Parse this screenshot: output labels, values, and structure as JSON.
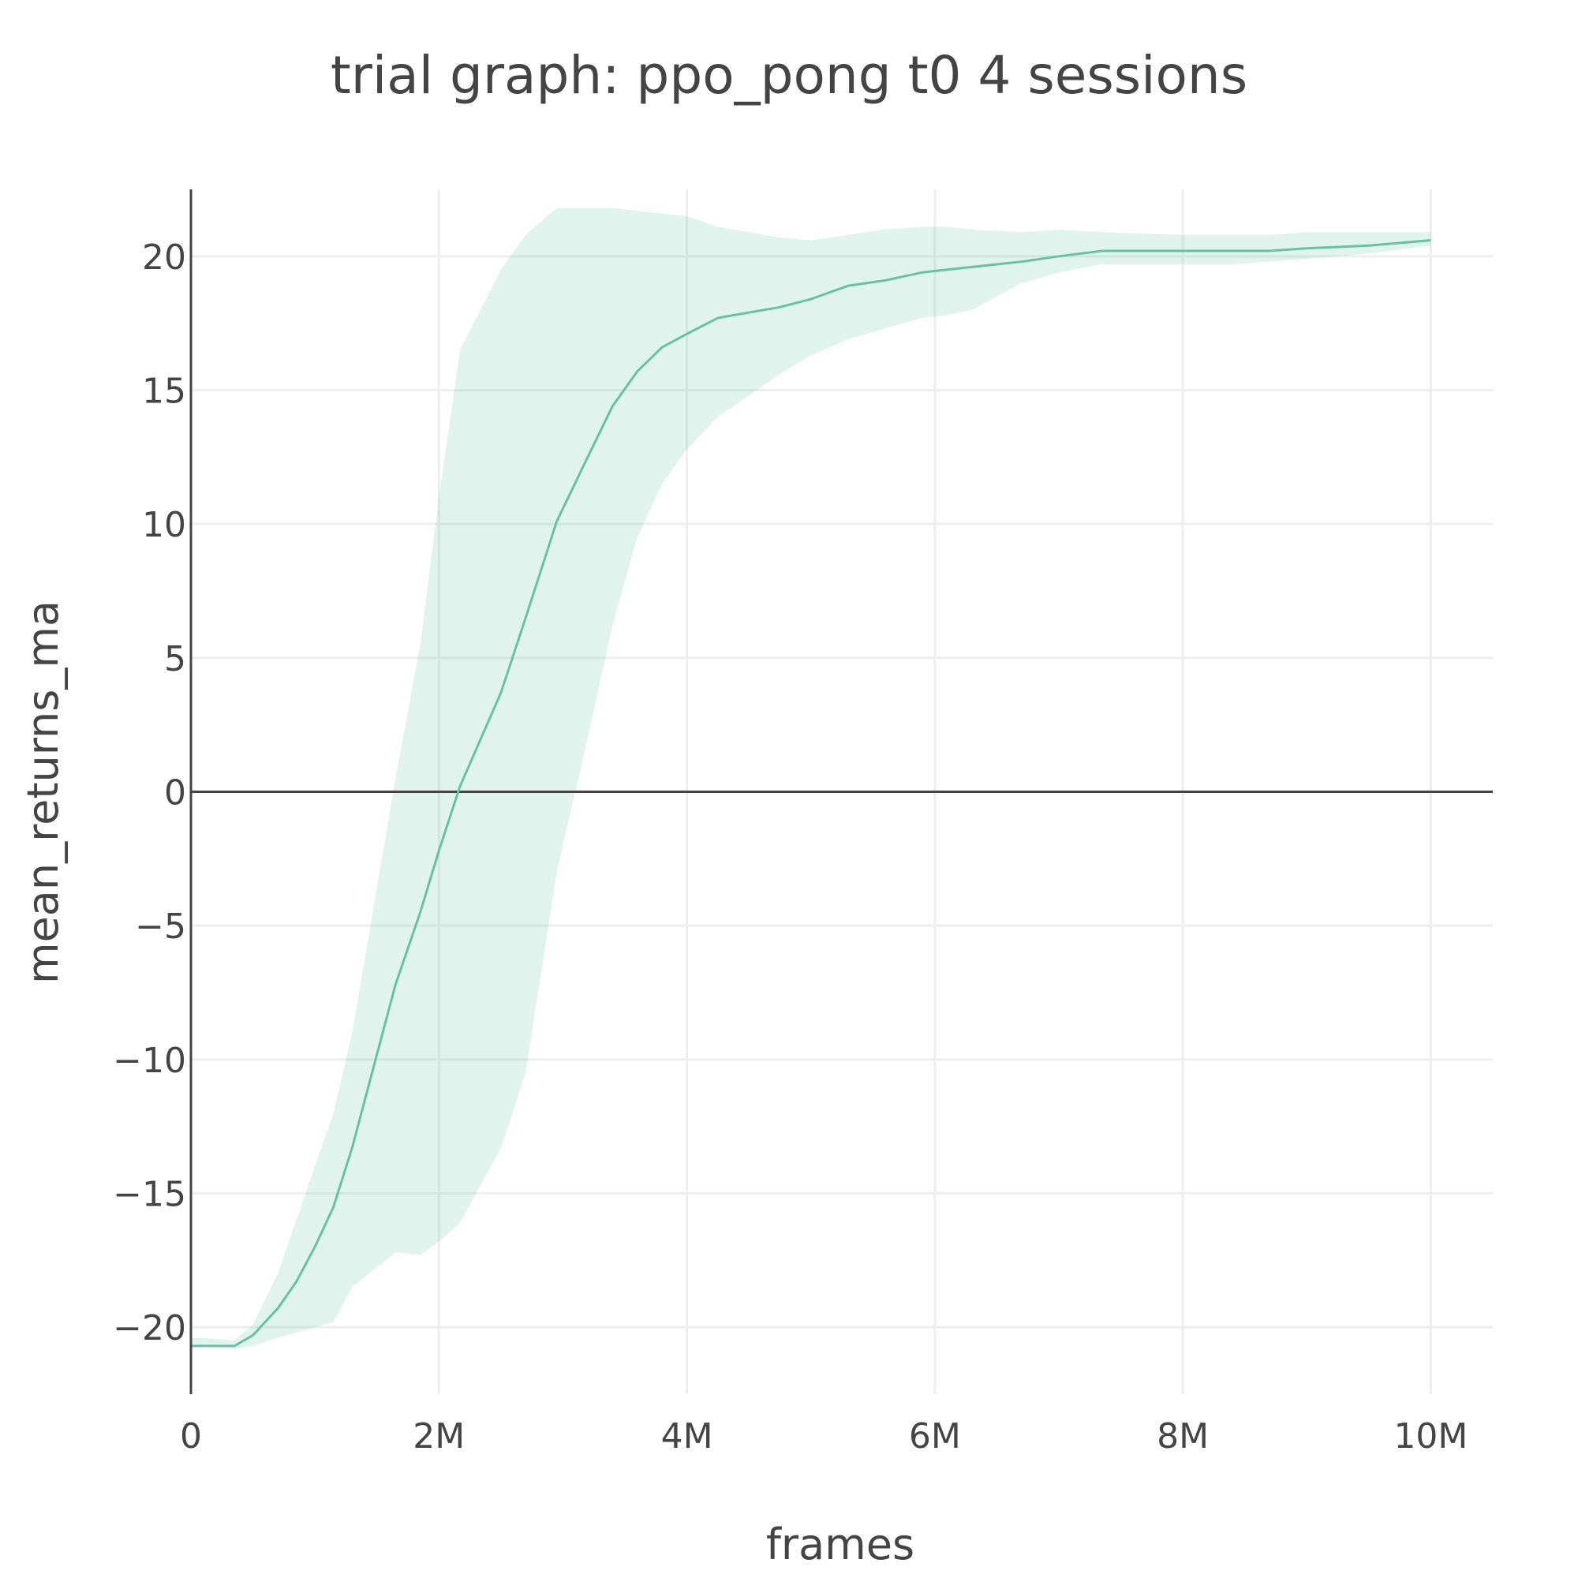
{
  "chart_data": {
    "type": "line",
    "title": "trial graph: ppo_pong t0 4 sessions",
    "xlabel": "frames",
    "ylabel": "mean_returns_ma",
    "xlim": [
      0,
      10500000
    ],
    "ylim": [
      -22.5,
      22.5
    ],
    "x_ticks": [
      0,
      2000000,
      4000000,
      6000000,
      8000000,
      10000000
    ],
    "x_tick_labels": [
      "0",
      "2M",
      "4M",
      "6M",
      "8M",
      "10M"
    ],
    "y_ticks": [
      -20,
      -15,
      -10,
      -5,
      0,
      5,
      10,
      15,
      20
    ],
    "y_tick_labels": [
      "−20",
      "−15",
      "−10",
      "−5",
      "0",
      "5",
      "10",
      "15",
      "20"
    ],
    "grid": true,
    "legend": false,
    "colors": {
      "line": "#66c2a5",
      "band": "rgba(102,194,165,0.2)",
      "zeroline": "#444444",
      "grid": "#eeeeee",
      "text": "#444444"
    },
    "series": [
      {
        "x": [
          0,
          100000,
          350000,
          500000,
          700000,
          850000,
          1000000,
          1150000,
          1300000,
          1650000,
          1850000,
          2000000,
          2170000,
          2500000,
          2700000,
          2950000,
          3200000,
          3400000,
          3600000,
          3800000,
          4000000,
          4250000,
          4500000,
          4750000,
          5000000,
          5300000,
          5600000,
          5900000,
          6100000,
          6300000,
          6700000,
          7000000,
          7350000,
          8000000,
          8400000,
          8700000,
          9000000,
          9500000,
          10000000
        ],
        "y": [
          -20.7,
          -20.7,
          -20.7,
          -20.3,
          -19.3,
          -18.3,
          -17.0,
          -15.5,
          -13.3,
          -7.2,
          -4.5,
          -2.2,
          0.2,
          3.7,
          6.5,
          10.1,
          12.5,
          14.4,
          15.7,
          16.6,
          17.1,
          17.7,
          17.9,
          18.1,
          18.4,
          18.9,
          19.1,
          19.4,
          19.5,
          19.6,
          19.8,
          20.0,
          20.2,
          20.2,
          20.2,
          20.2,
          20.3,
          20.4,
          20.6
        ],
        "lower": [
          -20.7,
          -20.7,
          -20.8,
          -20.7,
          -20.4,
          -20.2,
          -20.0,
          -19.8,
          -18.5,
          -17.2,
          -17.3,
          -16.8,
          -16.1,
          -13.3,
          -10.5,
          -3.0,
          2.0,
          6.2,
          9.5,
          11.5,
          12.8,
          14.0,
          14.8,
          15.6,
          16.3,
          16.9,
          17.3,
          17.7,
          17.8,
          18.0,
          19.0,
          19.4,
          19.7,
          19.7,
          19.7,
          19.8,
          19.9,
          20.1,
          20.4
        ],
        "upper": [
          -20.4,
          -20.4,
          -20.5,
          -19.9,
          -18.0,
          -16.0,
          -14.0,
          -12.0,
          -9.0,
          0.5,
          5.5,
          11.0,
          16.5,
          19.5,
          20.8,
          21.8,
          21.8,
          21.8,
          21.7,
          21.6,
          21.5,
          21.1,
          20.9,
          20.7,
          20.6,
          20.8,
          21.0,
          21.1,
          21.1,
          21.0,
          20.9,
          21.0,
          20.9,
          20.8,
          20.8,
          20.8,
          20.9,
          20.9,
          20.9
        ]
      }
    ]
  }
}
